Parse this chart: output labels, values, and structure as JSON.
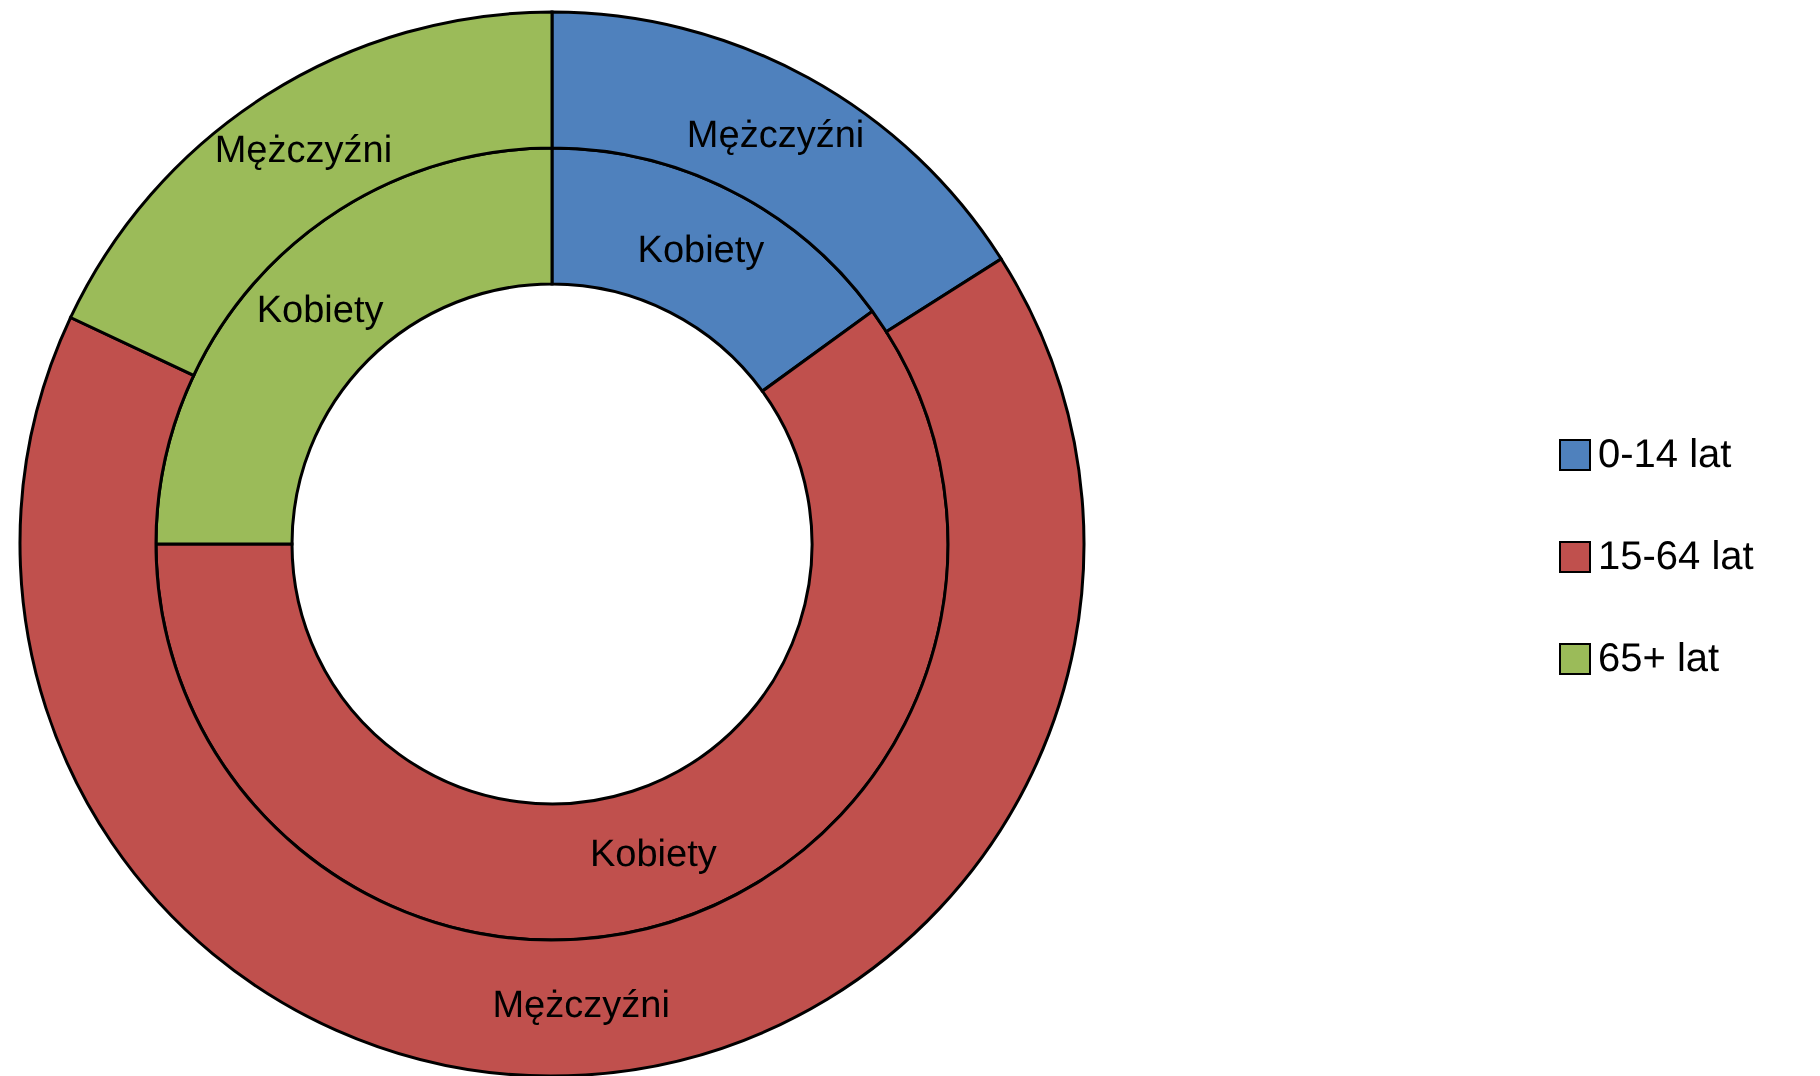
{
  "chart_data": {
    "type": "donut",
    "categories": [
      "0-14 lat",
      "15-64 lat",
      "65+ lat"
    ],
    "colors": [
      "#4f81bd",
      "#c0504d",
      "#9bbb59"
    ],
    "series": [
      {
        "name": "Kobiety",
        "values": [
          15,
          60,
          25
        ]
      },
      {
        "name": "Mężczyźni",
        "values": [
          16,
          66,
          18
        ]
      }
    ],
    "legend": "right"
  }
}
